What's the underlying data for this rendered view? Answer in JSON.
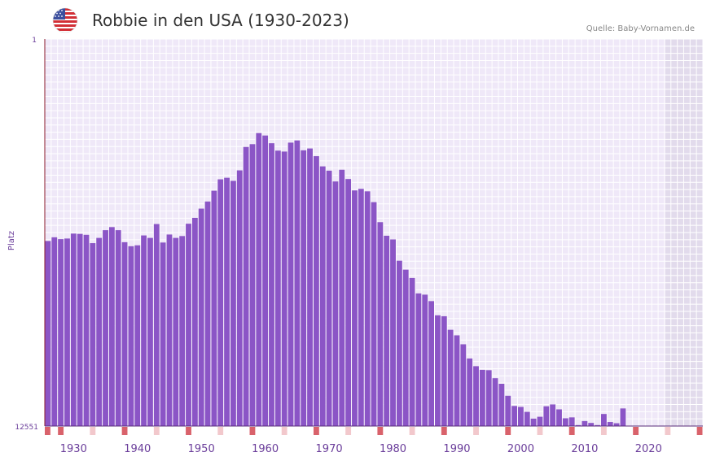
{
  "header": {
    "title": "Robbie in den USA (1930-2023)",
    "source": "Quelle: Baby-Vornamen.de",
    "flag": "us-flag-icon"
  },
  "colors": {
    "bar": "#8b55c6",
    "plot_bg": "#efe8f8",
    "future_bg": "#e2dbec",
    "grid": "#ffffff",
    "axis": "#8b1a2b",
    "tick_marker": "#d9626b",
    "tick_marker_light": "#f2c8cc",
    "label": "#6a3d9a"
  },
  "chart_data": {
    "type": "bar",
    "title": "Robbie in den USA (1930-2023)",
    "xlabel": "",
    "ylabel": "Platz",
    "y_axis_inverted": true,
    "ylim": [
      1,
      12551
    ],
    "y_ticks": [
      "1",
      "12551"
    ],
    "xlim": [
      1926,
      2029
    ],
    "x_ticks": [
      1930,
      1940,
      1950,
      1960,
      1970,
      1980,
      1990,
      2000,
      2010,
      2020
    ],
    "years": [
      1926,
      1927,
      1928,
      1929,
      1930,
      1931,
      1932,
      1933,
      1934,
      1935,
      1936,
      1937,
      1938,
      1939,
      1940,
      1941,
      1942,
      1943,
      1944,
      1945,
      1946,
      1947,
      1948,
      1949,
      1950,
      1951,
      1952,
      1953,
      1954,
      1955,
      1956,
      1957,
      1958,
      1959,
      1960,
      1961,
      1962,
      1963,
      1964,
      1965,
      1966,
      1967,
      1968,
      1969,
      1970,
      1971,
      1972,
      1973,
      1974,
      1975,
      1976,
      1977,
      1978,
      1979,
      1980,
      1981,
      1982,
      1983,
      1984,
      1985,
      1986,
      1987,
      1988,
      1989,
      1990,
      1991,
      1992,
      1993,
      1994,
      1995,
      1996,
      1997,
      1998,
      1999,
      2000,
      2001,
      2002,
      2003,
      2004,
      2005,
      2006,
      2007,
      2008,
      2009,
      2010,
      2011,
      2012,
      2013,
      2014,
      2015,
      2016,
      2017,
      2018,
      2019,
      2020,
      2021,
      2022
    ],
    "values": [
      6550,
      6430,
      6490,
      6470,
      6310,
      6320,
      6350,
      6620,
      6450,
      6200,
      6100,
      6200,
      6590,
      6720,
      6690,
      6370,
      6450,
      6000,
      6600,
      6340,
      6450,
      6390,
      5990,
      5800,
      5500,
      5270,
      4920,
      4550,
      4500,
      4600,
      4260,
      3500,
      3410,
      3050,
      3130,
      3380,
      3620,
      3650,
      3360,
      3290,
      3610,
      3550,
      3800,
      4130,
      4270,
      4620,
      4240,
      4540,
      4910,
      4860,
      4940,
      5290,
      5940,
      6380,
      6500,
      7190,
      7480,
      7750,
      8250,
      8290,
      8500,
      8960,
      8990,
      9430,
      9610,
      9900,
      10360,
      10610,
      10730,
      10740,
      11000,
      11180,
      11570,
      11900,
      11930,
      12090,
      12310,
      12250,
      11910,
      11850,
      12010,
      12300,
      12270,
      12520,
      12390,
      12450,
      12520,
      12160,
      12420,
      12460,
      11980,
      12550,
      12551,
      12551,
      12551,
      12551,
      12551
    ],
    "future_from": 2023
  }
}
